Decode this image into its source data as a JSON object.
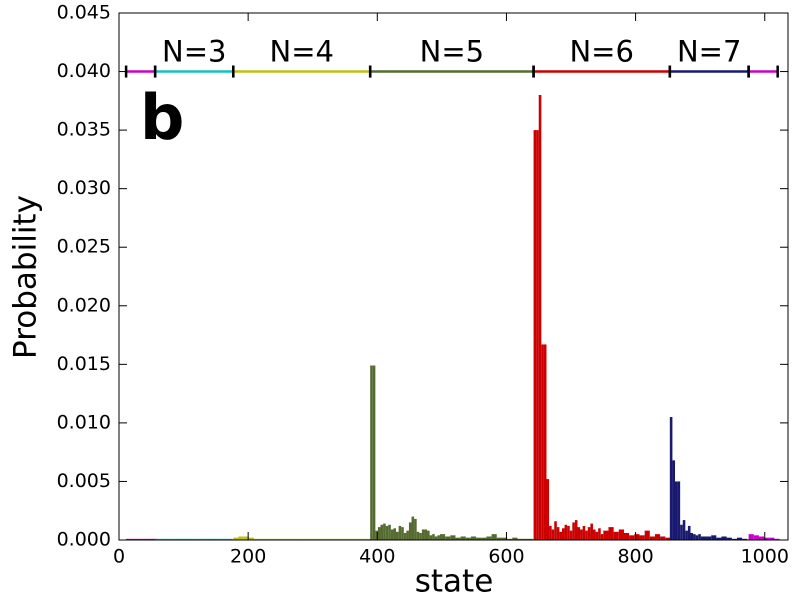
{
  "chart_data": {
    "type": "bar",
    "panel_label": "b",
    "xlabel": "state",
    "ylabel": "Probability",
    "xlim": [
      0,
      1036
    ],
    "ylim": [
      0,
      0.045
    ],
    "xticks": [
      0,
      200,
      400,
      600,
      800,
      1000
    ],
    "yticks": [
      {
        "value": 0,
        "label": "0.000"
      },
      {
        "value": 0.005,
        "label": "0.005"
      },
      {
        "value": 0.01,
        "label": "0.010"
      },
      {
        "value": 0.015,
        "label": "0.015"
      },
      {
        "value": 0.02,
        "label": "0.020"
      },
      {
        "value": 0.025,
        "label": "0.025"
      },
      {
        "value": 0.03,
        "label": "0.030"
      },
      {
        "value": 0.035,
        "label": "0.035"
      },
      {
        "value": 0.04,
        "label": "0.040"
      },
      {
        "value": 0.045,
        "label": "0.045"
      }
    ],
    "bracket_level": 0.04,
    "series": [
      {
        "color": "#cc00cc",
        "range": [
          11,
          56
        ],
        "x": [
          11,
          23,
          35,
          47
        ],
        "values": [
          0.0001,
          0.0001,
          0.0001,
          0.0001
        ]
      },
      {
        "name": "N=3",
        "color": "#17bfbf",
        "range": [
          56,
          177
        ],
        "x": [
          56,
          76,
          96,
          116,
          136,
          156
        ],
        "values": [
          0.0001,
          0.0001,
          0.0001,
          0.0001,
          0.0001,
          0.0001
        ]
      },
      {
        "name": "N=4",
        "color": "#bfbf17",
        "range": [
          177,
          389
        ],
        "x": [
          177,
          185,
          193,
          201,
          209,
          240,
          280,
          320,
          360
        ],
        "values": [
          0.0002,
          0.0003,
          0.0003,
          0.0002,
          0.0001,
          0.0001,
          0.0001,
          0.0001,
          0.0001
        ]
      },
      {
        "name": "N=5",
        "color": "#556b2f",
        "range": [
          389,
          642
        ],
        "x": [
          389,
          393,
          397,
          401,
          405,
          409,
          413,
          417,
          421,
          425,
          429,
          433,
          437,
          441,
          445,
          449,
          453,
          457,
          461,
          465,
          469,
          473,
          477,
          481,
          485,
          489,
          493,
          497,
          505,
          513,
          521,
          529,
          537,
          545,
          553,
          561,
          569,
          577,
          585,
          593,
          601,
          609,
          617,
          625,
          633
        ],
        "values": [
          0.0149,
          0.0149,
          0.0008,
          0.0011,
          0.0013,
          0.0014,
          0.0012,
          0.0013,
          0.0009,
          0.001,
          0.0007,
          0.0012,
          0.0011,
          0.0006,
          0.0008,
          0.0015,
          0.002,
          0.0018,
          0.0007,
          0.0006,
          0.0009,
          0.0009,
          0.0008,
          0.0004,
          0.0005,
          0.0003,
          0.0004,
          0.0005,
          0.0003,
          0.0004,
          0.0002,
          0.0003,
          0.0002,
          0.0003,
          0.0002,
          0.0002,
          0.0003,
          0.0005,
          0.0002,
          0.0002,
          0.0001,
          0.0002,
          0.0001,
          0.0001,
          0.0001
        ]
      },
      {
        "name": "N=6",
        "color": "#cc0000",
        "range": [
          642,
          853
        ],
        "x": [
          642,
          646,
          650,
          654,
          658,
          662,
          666,
          670,
          674,
          678,
          682,
          686,
          690,
          694,
          698,
          702,
          706,
          710,
          714,
          718,
          722,
          726,
          730,
          734,
          738,
          742,
          746,
          750,
          758,
          766,
          774,
          782,
          790,
          798,
          806,
          814,
          822,
          830,
          838,
          846
        ],
        "values": [
          0.035,
          0.035,
          0.038,
          0.0167,
          0.0167,
          0.0052,
          0.0012,
          0.0009,
          0.0016,
          0.0011,
          0.0007,
          0.001,
          0.0013,
          0.0012,
          0.0008,
          0.0015,
          0.0017,
          0.0011,
          0.0009,
          0.0012,
          0.0008,
          0.0011,
          0.0014,
          0.0009,
          0.0007,
          0.001,
          0.0005,
          0.0008,
          0.0011,
          0.0007,
          0.0009,
          0.0006,
          0.0004,
          0.0005,
          0.0004,
          0.0008,
          0.0003,
          0.0005,
          0.0003,
          0.0002
        ]
      },
      {
        "name": "N=7",
        "color": "#191970",
        "range": [
          853,
          975
        ],
        "x": [
          853,
          857,
          861,
          865,
          869,
          873,
          877,
          881,
          885,
          889,
          893,
          897,
          901,
          909,
          917,
          925,
          933,
          941,
          949,
          957,
          965
        ],
        "values": [
          0.0105,
          0.0068,
          0.005,
          0.005,
          0.0013,
          0.0017,
          0.0008,
          0.0012,
          0.0006,
          0.0005,
          0.0004,
          0.0005,
          0.0003,
          0.0003,
          0.0004,
          0.0002,
          0.0003,
          0.0002,
          0.0001,
          0.0002,
          0.0001
        ]
      },
      {
        "color": "#cc00cc",
        "range": [
          975,
          1020
        ],
        "x": [
          975,
          983,
          991,
          999,
          1007,
          1015
        ],
        "values": [
          0.0005,
          0.0004,
          0.0003,
          0.0002,
          0.0002,
          0.0001
        ]
      }
    ]
  }
}
